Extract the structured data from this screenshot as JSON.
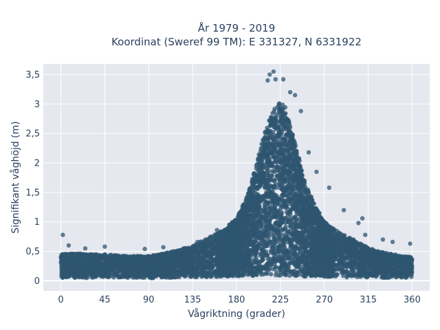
{
  "chart_data": {
    "type": "scatter",
    "title_lines": [
      "År 1979 - 2019",
      "Koordinat (Sweref 99 TM): E 331327, N 6331922"
    ],
    "xlabel": "Vågriktning (grader)",
    "ylabel": "Signifikant våghöjd (m)",
    "xlim": [
      -18,
      378
    ],
    "ylim": [
      -0.17,
      3.68
    ],
    "x_ticks": [
      0,
      45,
      90,
      135,
      180,
      225,
      270,
      315,
      360
    ],
    "x_tick_labels": [
      "0",
      "45",
      "90",
      "135",
      "180",
      "225",
      "270",
      "315",
      "360"
    ],
    "y_ticks": [
      0,
      0.5,
      1,
      1.5,
      2,
      2.5,
      3,
      3.5
    ],
    "y_tick_labels": [
      "0",
      "0,5",
      "1",
      "1,5",
      "2",
      "2,5",
      "3",
      "3,5"
    ],
    "grid": true,
    "marker_color": "#2f5670",
    "plot_background": "#e5e8ef",
    "envelope": {
      "direction": [
        0,
        15,
        30,
        45,
        60,
        75,
        90,
        105,
        120,
        135,
        150,
        165,
        180,
        190,
        200,
        210,
        220,
        225,
        230,
        240,
        250,
        260,
        270,
        285,
        300,
        315,
        330,
        345,
        360
      ],
      "max_height": [
        0.45,
        0.47,
        0.45,
        0.45,
        0.43,
        0.42,
        0.42,
        0.46,
        0.52,
        0.6,
        0.72,
        0.85,
        1.05,
        1.4,
        1.95,
        2.6,
        2.98,
        3.05,
        2.95,
        2.35,
        1.7,
        1.3,
        1.0,
        0.82,
        0.7,
        0.56,
        0.48,
        0.44,
        0.4
      ],
      "min_height": [
        0.05,
        0.04,
        0.05,
        0.06,
        0.05,
        0.05,
        0.04,
        0.05,
        0.05,
        0.06,
        0.06,
        0.07,
        0.08,
        0.08,
        0.08,
        0.08,
        0.08,
        0.08,
        0.08,
        0.08,
        0.07,
        0.07,
        0.07,
        0.06,
        0.06,
        0.06,
        0.05,
        0.05,
        0.05
      ]
    },
    "outliers": [
      {
        "x": 2,
        "y": 0.78
      },
      {
        "x": 8,
        "y": 0.6
      },
      {
        "x": 25,
        "y": 0.55
      },
      {
        "x": 45,
        "y": 0.58
      },
      {
        "x": 86,
        "y": 0.54
      },
      {
        "x": 105,
        "y": 0.57
      },
      {
        "x": 140,
        "y": 0.66
      },
      {
        "x": 160,
        "y": 0.86
      },
      {
        "x": 212,
        "y": 3.4
      },
      {
        "x": 214,
        "y": 3.5
      },
      {
        "x": 218,
        "y": 3.55
      },
      {
        "x": 220,
        "y": 3.42
      },
      {
        "x": 228,
        "y": 3.42
      },
      {
        "x": 235,
        "y": 3.2
      },
      {
        "x": 240,
        "y": 3.15
      },
      {
        "x": 246,
        "y": 2.88
      },
      {
        "x": 254,
        "y": 2.18
      },
      {
        "x": 262,
        "y": 1.85
      },
      {
        "x": 275,
        "y": 1.58
      },
      {
        "x": 290,
        "y": 1.2
      },
      {
        "x": 305,
        "y": 0.98
      },
      {
        "x": 309,
        "y": 1.06
      },
      {
        "x": 312,
        "y": 0.78
      },
      {
        "x": 330,
        "y": 0.7
      },
      {
        "x": 340,
        "y": 0.66
      },
      {
        "x": 358,
        "y": 0.63
      }
    ]
  }
}
